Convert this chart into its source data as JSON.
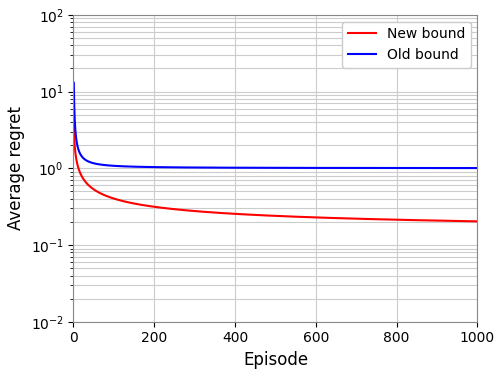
{
  "title": "",
  "xlabel": "Episode",
  "ylabel": "Average regret",
  "xlim": [
    0,
    1000
  ],
  "ylim": [
    0.01,
    100
  ],
  "new_bound_color": "#ff0000",
  "old_bound_color": "#0000ff",
  "new_bound_label": "New bound",
  "old_bound_label": "Old bound",
  "x_start": 1,
  "x_end": 1000,
  "new_bound_A": 3.5,
  "new_bound_b": 0.55,
  "new_bound_floor": 0.125,
  "old_bound_A": 12.0,
  "old_bound_b": 1.1,
  "old_bound_floor": 1.0,
  "grid_color": "#cccccc",
  "background_color": "#ffffff",
  "linewidth": 1.5,
  "legend_fontsize": 10,
  "axis_fontsize": 12
}
